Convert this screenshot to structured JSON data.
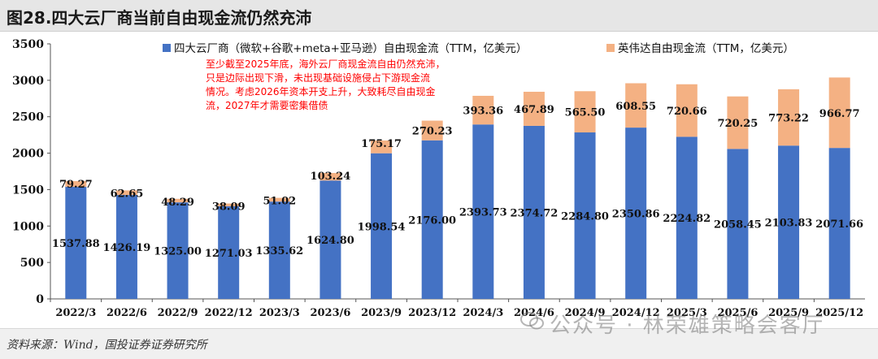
{
  "header": {
    "title": "图28.四大云厂商当前自由现金流仍然充沛"
  },
  "footer": {
    "source": "资料来源：Wind，国投证券证券研究所"
  },
  "watermark": {
    "text": "公众号 · 林荣雄策略会客厅"
  },
  "colors": {
    "base": "#4472c4",
    "top": "#f4b183",
    "annotation": "#ff0000"
  },
  "chart_data": {
    "type": "bar",
    "stacked": true,
    "categories": [
      "2022/3",
      "2022/6",
      "2022/9",
      "2022/12",
      "2023/3",
      "2023/6",
      "2023/9",
      "2023/12",
      "2024/3",
      "2024/6",
      "2024/9",
      "2024/12",
      "2025/3",
      "2025/6",
      "2025/9",
      "2025/12"
    ],
    "series": [
      {
        "name": "四大云厂商（微软+谷歌+meta+亚马逊）自由现金流（TTM，亿美元）",
        "values": [
          1537.88,
          1426.19,
          1325.0,
          1271.03,
          1335.62,
          1624.8,
          1998.54,
          2176.0,
          2393.73,
          2374.72,
          2284.8,
          2350.86,
          2224.82,
          2058.45,
          2103.83,
          2071.66
        ]
      },
      {
        "name": "英伟达自由现金流（TTM，亿美元）",
        "values": [
          79.27,
          62.65,
          48.29,
          38.09,
          51.02,
          103.24,
          175.17,
          270.23,
          393.36,
          467.89,
          565.5,
          608.55,
          720.66,
          720.25,
          773.22,
          966.77
        ]
      }
    ],
    "ylim": [
      0,
      3500
    ],
    "yticks": [
      0,
      500,
      1000,
      1500,
      2000,
      2500,
      3000,
      3500
    ],
    "legend": "top",
    "grid": false,
    "annotation": {
      "lines": [
        "至少截至2025年底，海外云厂商现金流自由仍然充沛，",
        "只是边际出现下滑，未出现基础设施侵占下游现金流",
        "情况。考虑2026年资本开支上升，大致耗尽自由现金",
        "流，2027年才需要密集借债"
      ]
    }
  }
}
